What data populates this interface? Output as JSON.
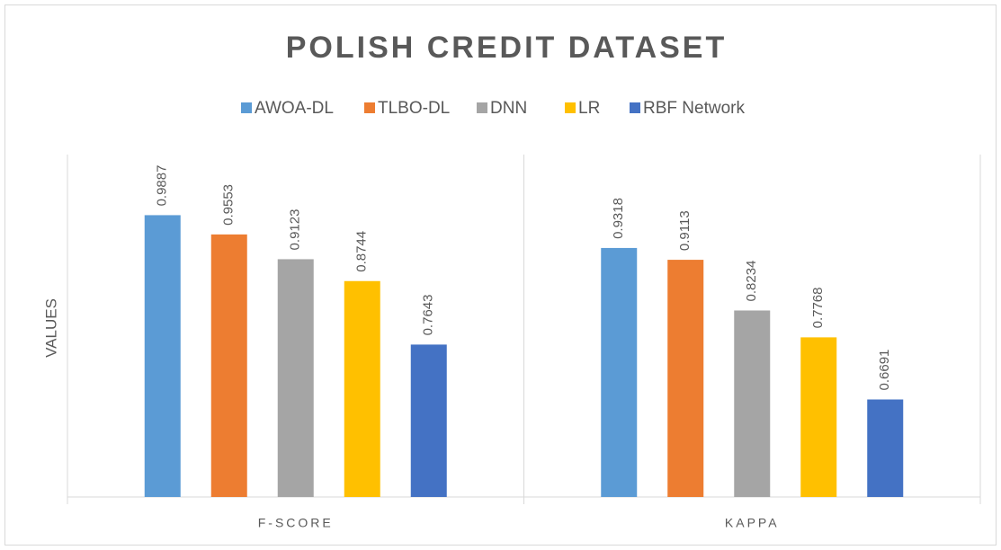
{
  "chart_data": {
    "type": "bar",
    "title": "POLISH CREDIT DATASET",
    "y_label": "VALUES",
    "categories": [
      "F-SCORE",
      "KAPPA"
    ],
    "series": [
      {
        "name": "AWOA-DL",
        "color": "#5b9bd5",
        "values": [
          0.9887,
          0.9318
        ]
      },
      {
        "name": "TLBO-DL",
        "color": "#ed7d31",
        "values": [
          0.9553,
          0.9113
        ]
      },
      {
        "name": "DNN",
        "color": "#a5a5a5",
        "values": [
          0.9123,
          0.8234
        ]
      },
      {
        "name": "LR",
        "color": "#ffc000",
        "values": [
          0.8744,
          0.7768
        ]
      },
      {
        "name": "RBF Network",
        "color": "#4472c4",
        "values": [
          0.7643,
          0.6691
        ]
      }
    ],
    "ylim": [
      0.5,
      1.1
    ],
    "legend": "top"
  }
}
